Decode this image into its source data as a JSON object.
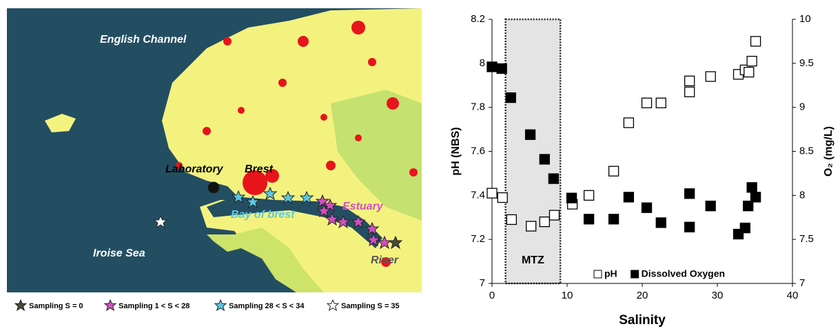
{
  "map": {
    "labels": {
      "english_channel": "English Channel",
      "laboratory": "Laboratory",
      "brest": "Brest",
      "bay": "Bay of brest",
      "estuary": "Estuary",
      "iroise": "Iroise Sea",
      "river": "River"
    },
    "legend": [
      "Sampling S = 0",
      "Sampling 1 < S < 28",
      "Sampling 28 < S < 34",
      "Sampling S = 35"
    ]
  },
  "chart_data": {
    "type": "scatter",
    "xlabel": "Salinity",
    "ylabel": "pH (NBS)",
    "y2label": "O₂ (mg/L)",
    "xlim": [
      0,
      40
    ],
    "xticks": [
      0,
      10,
      20,
      30,
      40
    ],
    "ylim": [
      7,
      8.2
    ],
    "yticks": [
      7,
      7.2,
      7.4,
      7.6,
      7.8,
      8,
      8.2
    ],
    "y2lim": [
      7,
      10
    ],
    "y2ticks": [
      7,
      7.5,
      8,
      8.5,
      9,
      9.5,
      10
    ],
    "annotation": {
      "text": "MTZ",
      "xlim": [
        1.8,
        9.1
      ]
    },
    "legend": "lower right",
    "series": [
      {
        "name": "pH",
        "color": "#ffffff",
        "x": [
          0,
          1.4,
          2.6,
          5.2,
          7.0,
          8.3,
          10.7,
          12.9,
          16.2,
          18.2,
          20.6,
          22.5,
          26.3,
          26.3,
          29.1,
          32.8,
          33.7,
          34.2,
          34.6,
          35.1
        ],
        "values": [
          7.41,
          7.39,
          7.29,
          7.26,
          7.28,
          7.31,
          7.36,
          7.4,
          7.51,
          7.73,
          7.82,
          7.82,
          7.92,
          7.87,
          7.94,
          7.95,
          7.97,
          7.96,
          8.01,
          8.1
        ]
      },
      {
        "name": "Dissolved Oxygen",
        "color": "#000000",
        "axis": "y2",
        "x": [
          0,
          1.3,
          2.5,
          5.1,
          7.0,
          8.2,
          10.6,
          12.9,
          16.2,
          18.2,
          20.6,
          22.5,
          26.3,
          26.3,
          29.1,
          32.8,
          33.7,
          34.1,
          34.6,
          35.1
        ],
        "values": [
          9.46,
          9.44,
          9.11,
          8.69,
          8.41,
          8.19,
          7.97,
          7.73,
          7.73,
          7.98,
          7.86,
          7.69,
          8.02,
          7.64,
          7.88,
          7.56,
          7.63,
          7.88,
          8.09,
          7.98
        ]
      }
    ]
  }
}
